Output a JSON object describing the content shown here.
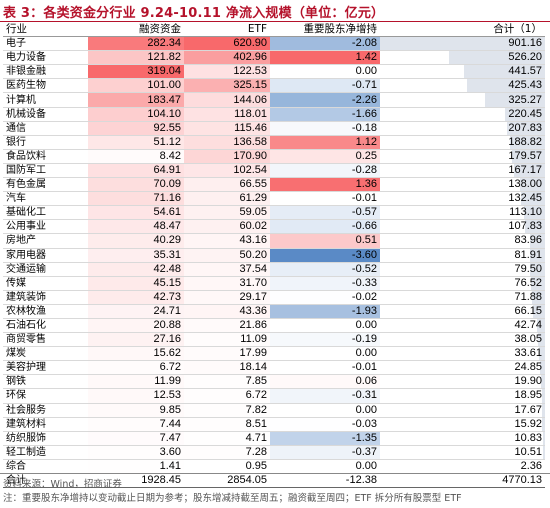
{
  "title": "表 3：各类资金分行业 9.24-10.11 净流入规模（单位：亿元）",
  "headers": [
    "行业",
    "融资资金",
    "ETF",
    "重要股东净增持",
    "合计（1）"
  ],
  "colors": {
    "title": "#b5122b",
    "red_scale": "#f8696b",
    "blue_scale": "#5a8ac6",
    "bar": "#dfe4ec"
  },
  "rows": [
    {
      "name": "电子",
      "margin": "282.34",
      "etf": "620.90",
      "holder": "-2.08",
      "total": "901.16"
    },
    {
      "name": "电力设备",
      "margin": "121.82",
      "etf": "402.96",
      "holder": "1.42",
      "total": "526.20"
    },
    {
      "name": "非银金融",
      "margin": "319.04",
      "etf": "122.53",
      "holder": "0.00",
      "total": "441.57"
    },
    {
      "name": "医药生物",
      "margin": "101.00",
      "etf": "325.15",
      "holder": "-0.71",
      "total": "425.43"
    },
    {
      "name": "计算机",
      "margin": "183.47",
      "etf": "144.06",
      "holder": "-2.26",
      "total": "325.27"
    },
    {
      "name": "机械设备",
      "margin": "104.10",
      "etf": "118.01",
      "holder": "-1.66",
      "total": "220.45"
    },
    {
      "name": "通信",
      "margin": "92.55",
      "etf": "115.46",
      "holder": "-0.18",
      "total": "207.83"
    },
    {
      "name": "银行",
      "margin": "51.12",
      "etf": "136.58",
      "holder": "1.12",
      "total": "188.82"
    },
    {
      "name": "食品饮料",
      "margin": "8.42",
      "etf": "170.90",
      "holder": "0.25",
      "total": "179.57"
    },
    {
      "name": "国防军工",
      "margin": "64.91",
      "etf": "102.54",
      "holder": "-0.28",
      "total": "167.17"
    },
    {
      "name": "有色金属",
      "margin": "70.09",
      "etf": "66.55",
      "holder": "1.36",
      "total": "138.00"
    },
    {
      "name": "汽车",
      "margin": "71.16",
      "etf": "61.29",
      "holder": "-0.01",
      "total": "132.45"
    },
    {
      "name": "基础化工",
      "margin": "54.61",
      "etf": "59.05",
      "holder": "-0.57",
      "total": "113.10"
    },
    {
      "name": "公用事业",
      "margin": "48.47",
      "etf": "60.02",
      "holder": "-0.66",
      "total": "107.83"
    },
    {
      "name": "房地产",
      "margin": "40.29",
      "etf": "43.16",
      "holder": "0.51",
      "total": "83.96"
    },
    {
      "name": "家用电器",
      "margin": "35.31",
      "etf": "50.20",
      "holder": "-3.60",
      "total": "81.91"
    },
    {
      "name": "交通运输",
      "margin": "42.48",
      "etf": "37.54",
      "holder": "-0.52",
      "total": "79.50"
    },
    {
      "name": "传媒",
      "margin": "45.15",
      "etf": "31.70",
      "holder": "-0.33",
      "total": "76.52"
    },
    {
      "name": "建筑装饰",
      "margin": "42.73",
      "etf": "29.17",
      "holder": "-0.02",
      "total": "71.88"
    },
    {
      "name": "农林牧渔",
      "margin": "24.71",
      "etf": "43.36",
      "holder": "-1.93",
      "total": "66.15"
    },
    {
      "name": "石油石化",
      "margin": "20.88",
      "etf": "21.86",
      "holder": "0.00",
      "total": "42.74"
    },
    {
      "name": "商贸零售",
      "margin": "27.16",
      "etf": "11.09",
      "holder": "-0.19",
      "total": "38.05"
    },
    {
      "name": "煤炭",
      "margin": "15.62",
      "etf": "17.99",
      "holder": "0.00",
      "total": "33.61"
    },
    {
      "name": "美容护理",
      "margin": "6.72",
      "etf": "18.14",
      "holder": "-0.01",
      "total": "24.85"
    },
    {
      "name": "钢铁",
      "margin": "11.99",
      "etf": "7.85",
      "holder": "0.06",
      "total": "19.90"
    },
    {
      "name": "环保",
      "margin": "12.53",
      "etf": "6.72",
      "holder": "-0.31",
      "total": "18.95"
    },
    {
      "name": "社会服务",
      "margin": "9.85",
      "etf": "7.82",
      "holder": "0.00",
      "total": "17.67"
    },
    {
      "name": "建筑材料",
      "margin": "7.44",
      "etf": "8.51",
      "holder": "-0.03",
      "total": "15.92"
    },
    {
      "name": "纺织服饰",
      "margin": "7.47",
      "etf": "4.71",
      "holder": "-1.35",
      "total": "10.83"
    },
    {
      "name": "轻工制造",
      "margin": "3.60",
      "etf": "7.28",
      "holder": "-0.37",
      "total": "10.51"
    },
    {
      "name": "综合",
      "margin": "1.41",
      "etf": "0.95",
      "holder": "0.00",
      "total": "2.36"
    }
  ],
  "total_row": {
    "name": "合计",
    "margin": "1928.45",
    "etf": "2854.05",
    "holder": "-12.38",
    "total": "4770.13"
  },
  "source": "资料来源：Wind，招商证券",
  "note": "注：重要股东净增持以变动截止日期为参考；股东增减持截至周五；融资截至周四；ETF 拆分所有股票型 ETF"
}
